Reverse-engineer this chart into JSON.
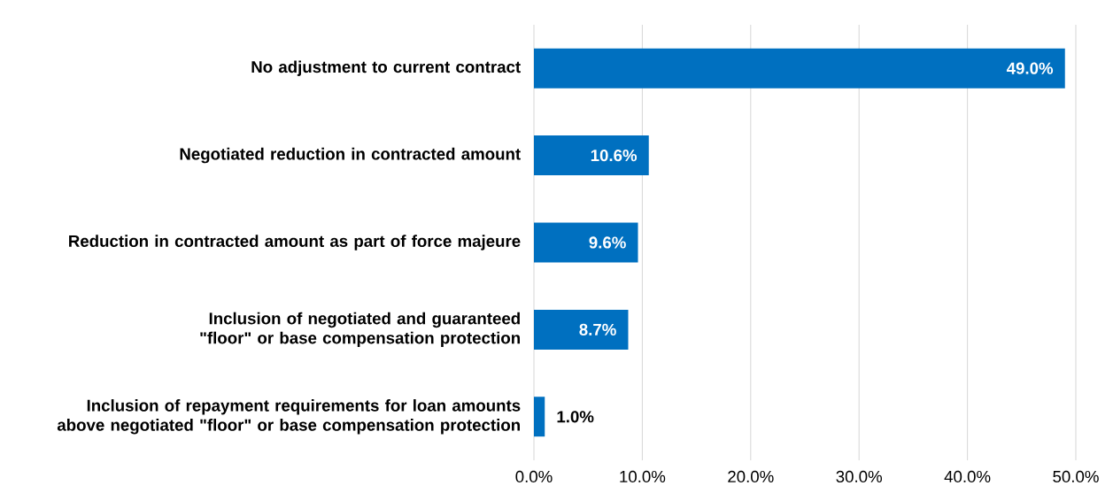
{
  "chart_data": {
    "type": "bar",
    "orientation": "horizontal",
    "categories": [
      "No adjustment to current contract",
      "Negotiated reduction in contracted amount",
      "Reduction in contracted amount as part of force majeure",
      "Inclusion of negotiated and guaranteed \"floor\" or base compensation protection",
      "Inclusion of repayment requirements for loan amounts above negotiated \"floor\" or base compensation protection"
    ],
    "values": [
      49.0,
      10.6,
      9.6,
      8.7,
      1.0
    ],
    "value_labels": [
      "49.0%",
      "10.6%",
      "9.6%",
      "8.7%",
      "1.0%"
    ],
    "color": "#0070c0",
    "xlim": [
      0,
      50
    ],
    "xticks": [
      {
        "value": 0,
        "label": "0.0%"
      },
      {
        "value": 10,
        "label": "10.0%"
      },
      {
        "value": 20,
        "label": "20.0%"
      },
      {
        "value": 30,
        "label": "30.0%"
      },
      {
        "value": 40,
        "label": "40.0%"
      },
      {
        "value": 50,
        "label": "50.0%"
      }
    ],
    "grid": "x"
  }
}
